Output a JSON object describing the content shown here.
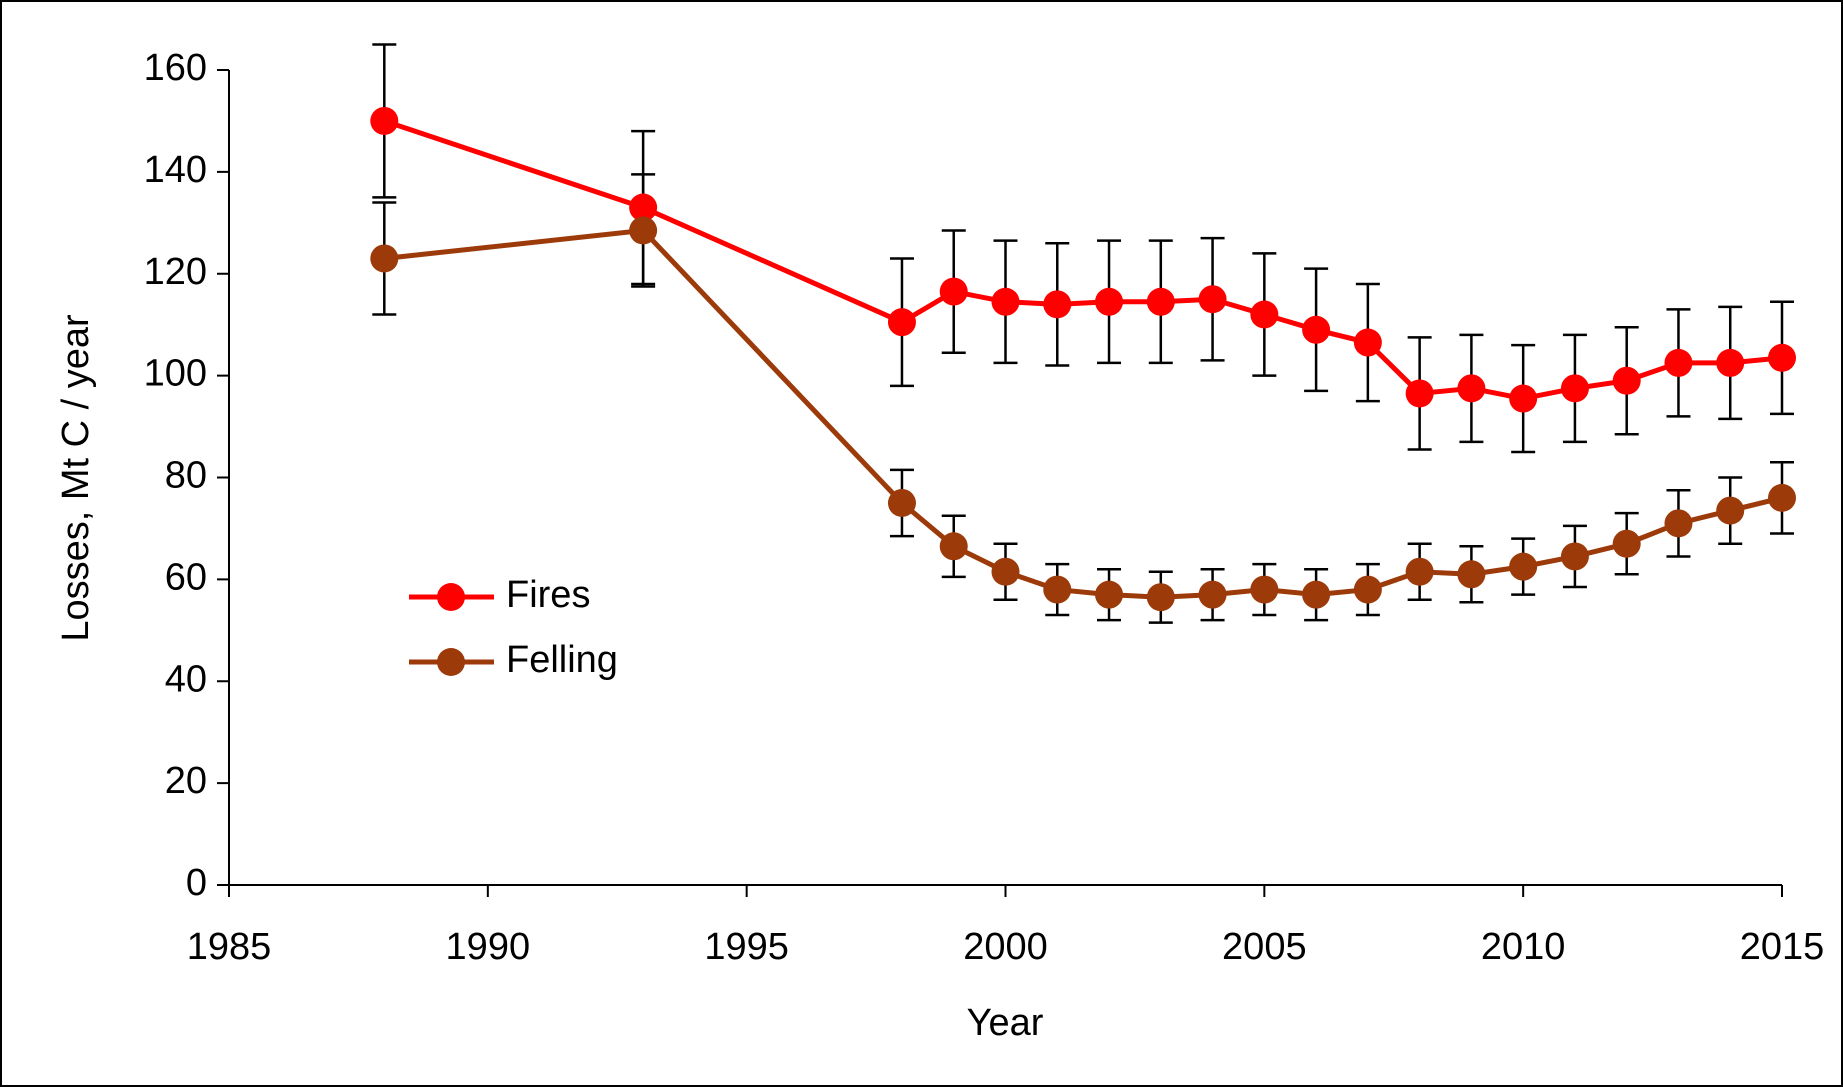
{
  "chart_data": {
    "type": "line",
    "x_label": "Year",
    "y_label": "Losses, Mt C / year",
    "x": [
      1988,
      1993,
      1998,
      1999,
      2000,
      2001,
      2002,
      2003,
      2004,
      2005,
      2006,
      2007,
      2008,
      2009,
      2010,
      2011,
      2012,
      2013,
      2014,
      2015
    ],
    "series": [
      {
        "name": "Fires",
        "color": "#ff0000",
        "values": [
          150,
          133,
          110.5,
          116.5,
          114.5,
          114,
          114.5,
          114.5,
          115,
          112,
          109,
          106.5,
          96.5,
          97.5,
          95.5,
          97.5,
          99,
          102.5,
          102.5,
          103.5
        ],
        "errors": [
          15,
          15,
          12.5,
          12,
          12,
          12,
          12,
          12,
          12,
          12,
          12,
          11.5,
          11,
          10.5,
          10.5,
          10.5,
          10.5,
          10.5,
          11,
          11
        ]
      },
      {
        "name": "Felling",
        "color": "#9c3a0a",
        "values": [
          123,
          128.5,
          75,
          66.5,
          61.5,
          58,
          57,
          56.5,
          57,
          58,
          57,
          58,
          61.5,
          61,
          62.5,
          64.5,
          67,
          71,
          73.5,
          76
        ],
        "errors": [
          11,
          11,
          6.5,
          6,
          5.5,
          5,
          5,
          5,
          5,
          5,
          5,
          5,
          5.5,
          5.5,
          5.5,
          6,
          6,
          6.5,
          6.5,
          7
        ]
      }
    ],
    "xlim": [
      1985,
      2015
    ],
    "xticks": [
      1985,
      1990,
      1995,
      2000,
      2005,
      2010,
      2015
    ],
    "ylim": [
      0,
      160
    ],
    "yticks": [
      0,
      20,
      40,
      60,
      80,
      100,
      120,
      140,
      160
    ],
    "grid": false,
    "legend": "left"
  }
}
